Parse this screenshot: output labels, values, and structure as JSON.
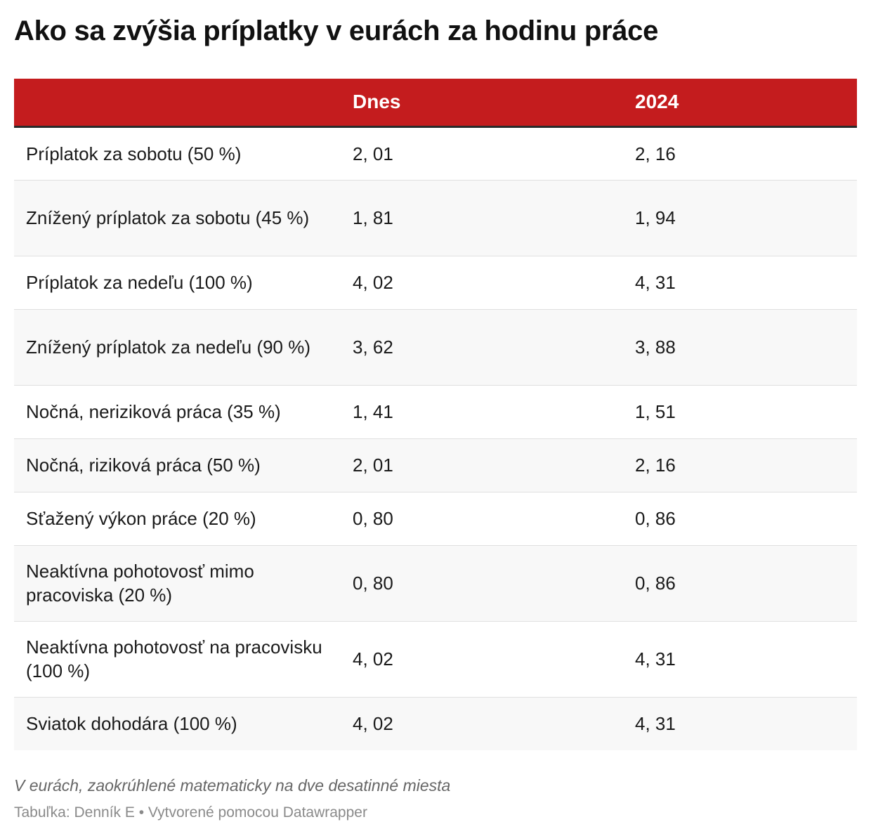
{
  "title": "Ako sa zvýšia príplatky v eurách za hodinu práce",
  "colors": {
    "header_bg": "#c41c1e",
    "header_text": "#ffffff",
    "row_alt_bg": "#f8f8f8",
    "row_bg": "#ffffff"
  },
  "chart_data": {
    "type": "table",
    "columns": [
      "",
      "Dnes",
      "2024"
    ],
    "rows": [
      {
        "label": "Príplatok za sobotu (50 %)",
        "dnes": "2, 01",
        "y2024": "2, 16",
        "lines": 1
      },
      {
        "label": "Znížený príplatok za sobotu (45 %)",
        "dnes": "1, 81",
        "y2024": "1, 94",
        "lines": 2
      },
      {
        "label": "Príplatok za nedeľu (100 %)",
        "dnes": "4, 02",
        "y2024": "4, 31",
        "lines": 1
      },
      {
        "label": "Znížený príplatok za nedeľu (90 %)",
        "dnes": "3, 62",
        "y2024": "3, 88",
        "lines": 2
      },
      {
        "label": "Nočná, neriziková práca (35 %)",
        "dnes": "1, 41",
        "y2024": "1, 51",
        "lines": 1
      },
      {
        "label": "Nočná, riziková práca (50 %)",
        "dnes": "2, 01",
        "y2024": "2, 16",
        "lines": 1
      },
      {
        "label": "Sťažený výkon práce (20 %)",
        "dnes": "0, 80",
        "y2024": "0, 86",
        "lines": 1
      },
      {
        "label": "Neaktívna pohotovosť mimo pracoviska (20 %)",
        "dnes": "0, 80",
        "y2024": "0, 86",
        "lines": 2
      },
      {
        "label": "Neaktívna pohotovosť na pracovisku (100 %)",
        "dnes": "4, 02",
        "y2024": "4, 31",
        "lines": 2
      },
      {
        "label": "Sviatok dohodára (100 %)",
        "dnes": "4, 02",
        "y2024": "4, 31",
        "lines": 1
      }
    ]
  },
  "footnote": "V eurách, zaokrúhlené matematicky na dve desatinné miesta",
  "source": "Tabuľka: Denník E • Vytvorené pomocou Datawrapper"
}
